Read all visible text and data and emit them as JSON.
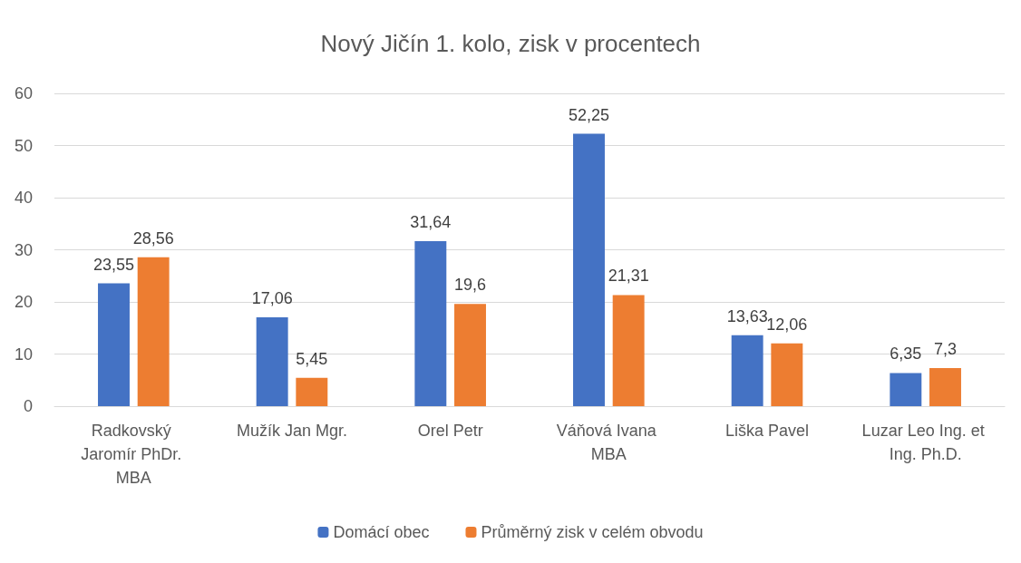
{
  "chart_data": {
    "type": "bar",
    "title": "Nový Jičín 1. kolo, zisk v procentech",
    "categories": [
      "Radkovský Jaromír PhDr. MBA",
      "Mužík Jan Mgr.",
      "Orel Petr",
      "Váňová Ivana MBA",
      "Liška Pavel",
      "Luzar Leo Ing. et Ing. Ph.D."
    ],
    "series": [
      {
        "name": "Domácí obec",
        "color": "#4472c4",
        "values": [
          23.55,
          17.06,
          31.64,
          52.25,
          13.63,
          6.35
        ],
        "value_labels": [
          "23,55",
          "17,06",
          "31,64",
          "52,25",
          "13,63",
          "6,35"
        ]
      },
      {
        "name": "Průměrný zisk v celém obvodu",
        "color": "#ed7d31",
        "values": [
          28.56,
          5.45,
          19.6,
          21.31,
          12.06,
          7.3
        ],
        "value_labels": [
          "28,56",
          "5,45",
          "19,6",
          "21,31",
          "12,06",
          "7,3"
        ]
      }
    ],
    "ylim": [
      0,
      60
    ],
    "yticks": [
      0,
      10,
      20,
      30,
      40,
      50,
      60
    ],
    "grid": "y",
    "legend": "bottom"
  }
}
